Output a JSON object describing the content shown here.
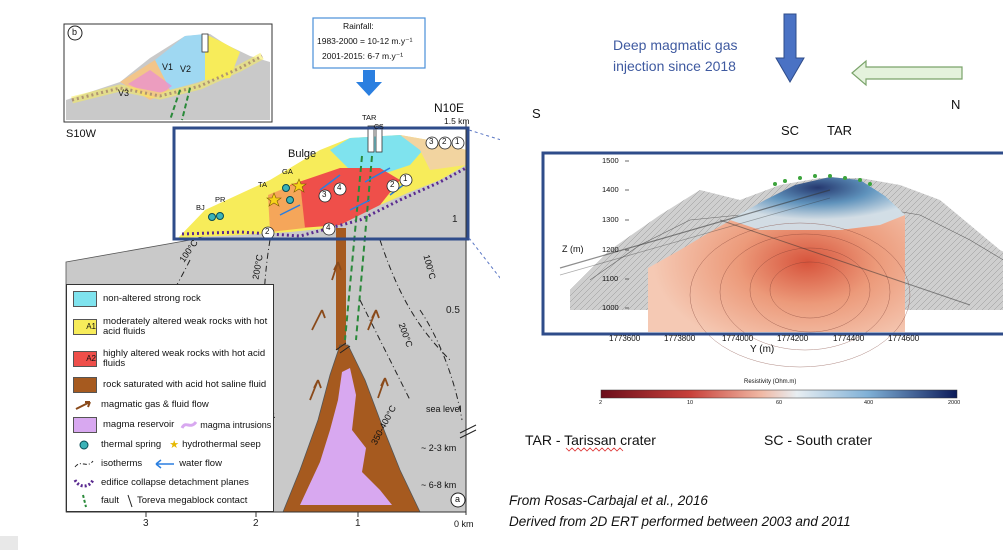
{
  "left": {
    "inset_label": "b",
    "inset_units": [
      "V1",
      "V2",
      "V3"
    ],
    "rainfall": {
      "title": "Rainfall:",
      "line1": "1983-2000 = 10-12 m.y⁻¹",
      "line2": "2001-2015: 6-7 m.y⁻¹"
    },
    "dir_left": "S10W",
    "dir_right": "N10E",
    "bulge": "Bulge",
    "sites": {
      "tar": "TAR",
      "cs": "CS",
      "ga": "GA",
      "ta": "TA",
      "pr": "PR",
      "bj": "BJ"
    },
    "circled": [
      "1",
      "2",
      "3",
      "4"
    ],
    "isotherms": {
      "i100a": "100°C",
      "i200a": "200°C",
      "i100b": "100°C",
      "i200b": "200°C",
      "i350": "350-400°C"
    },
    "right_axis": {
      "k15": "1.5 km",
      "k1": "1",
      "k05": "0.5",
      "sea": "sea level",
      "d23": "~ 2-3 km",
      "d68": "~ 6-8 km",
      "km0": "0 km"
    },
    "bottom_axis": [
      "3",
      "2",
      "1"
    ],
    "panel": "a",
    "legend": [
      "non-altered strong rock",
      "moderately altered weak rocks with hot acid fluids",
      "highly altered weak rocks with hot acid fluids",
      "rock saturated with acid hot saline fluid",
      "magmatic gas & fluid flow",
      "magma reservoir",
      "magma intrusions",
      "thermal spring",
      "hydrothermal seep",
      "isotherms",
      "water flow",
      "edifice collapse detachment planes",
      "fault",
      "Toreva megablock contact"
    ],
    "legend_codes": [
      "A1",
      "A2"
    ]
  },
  "right": {
    "injection_line1": "Deep magmatic gas",
    "injection_line2": "injection since 2018",
    "dir_s": "S",
    "dir_n": "N",
    "sc": "SC",
    "tar": "TAR",
    "z_label": "Z (m)",
    "z_ticks": [
      "1500",
      "1400",
      "1300",
      "1200",
      "1100",
      "1000"
    ],
    "y_label": "Y (m)",
    "y_ticks": [
      "1773600",
      "1773800",
      "1774000",
      "1774200",
      "1774400",
      "1774600"
    ],
    "resistivity_label": "Resistivity (Ohm.m)",
    "res_ticks": [
      "2",
      "10",
      "60",
      "400",
      "2000"
    ],
    "caption_tar": "TAR - Tarissan crater",
    "caption_sc": "SC - South crater",
    "source_line1": "From Rosas-Carbajal et al., 2016",
    "source_line2": "Derived from 2D ERT performed between 2003 and 2011"
  },
  "colors": {
    "frame_blue": "#2f4c8a",
    "arrow_blue": "#4a72c4",
    "arrow_green_fill": "#e4f2dc",
    "arrow_green_stroke": "#7aa36a",
    "cyan_rock": "#7fe3ee",
    "yellow_rock": "#f7ec5a",
    "red_rock": "#ef4f4a",
    "brown_fluid": "#a65a1f",
    "magma": "#d8a8f0",
    "grey_ground": "#c9c9c9"
  }
}
